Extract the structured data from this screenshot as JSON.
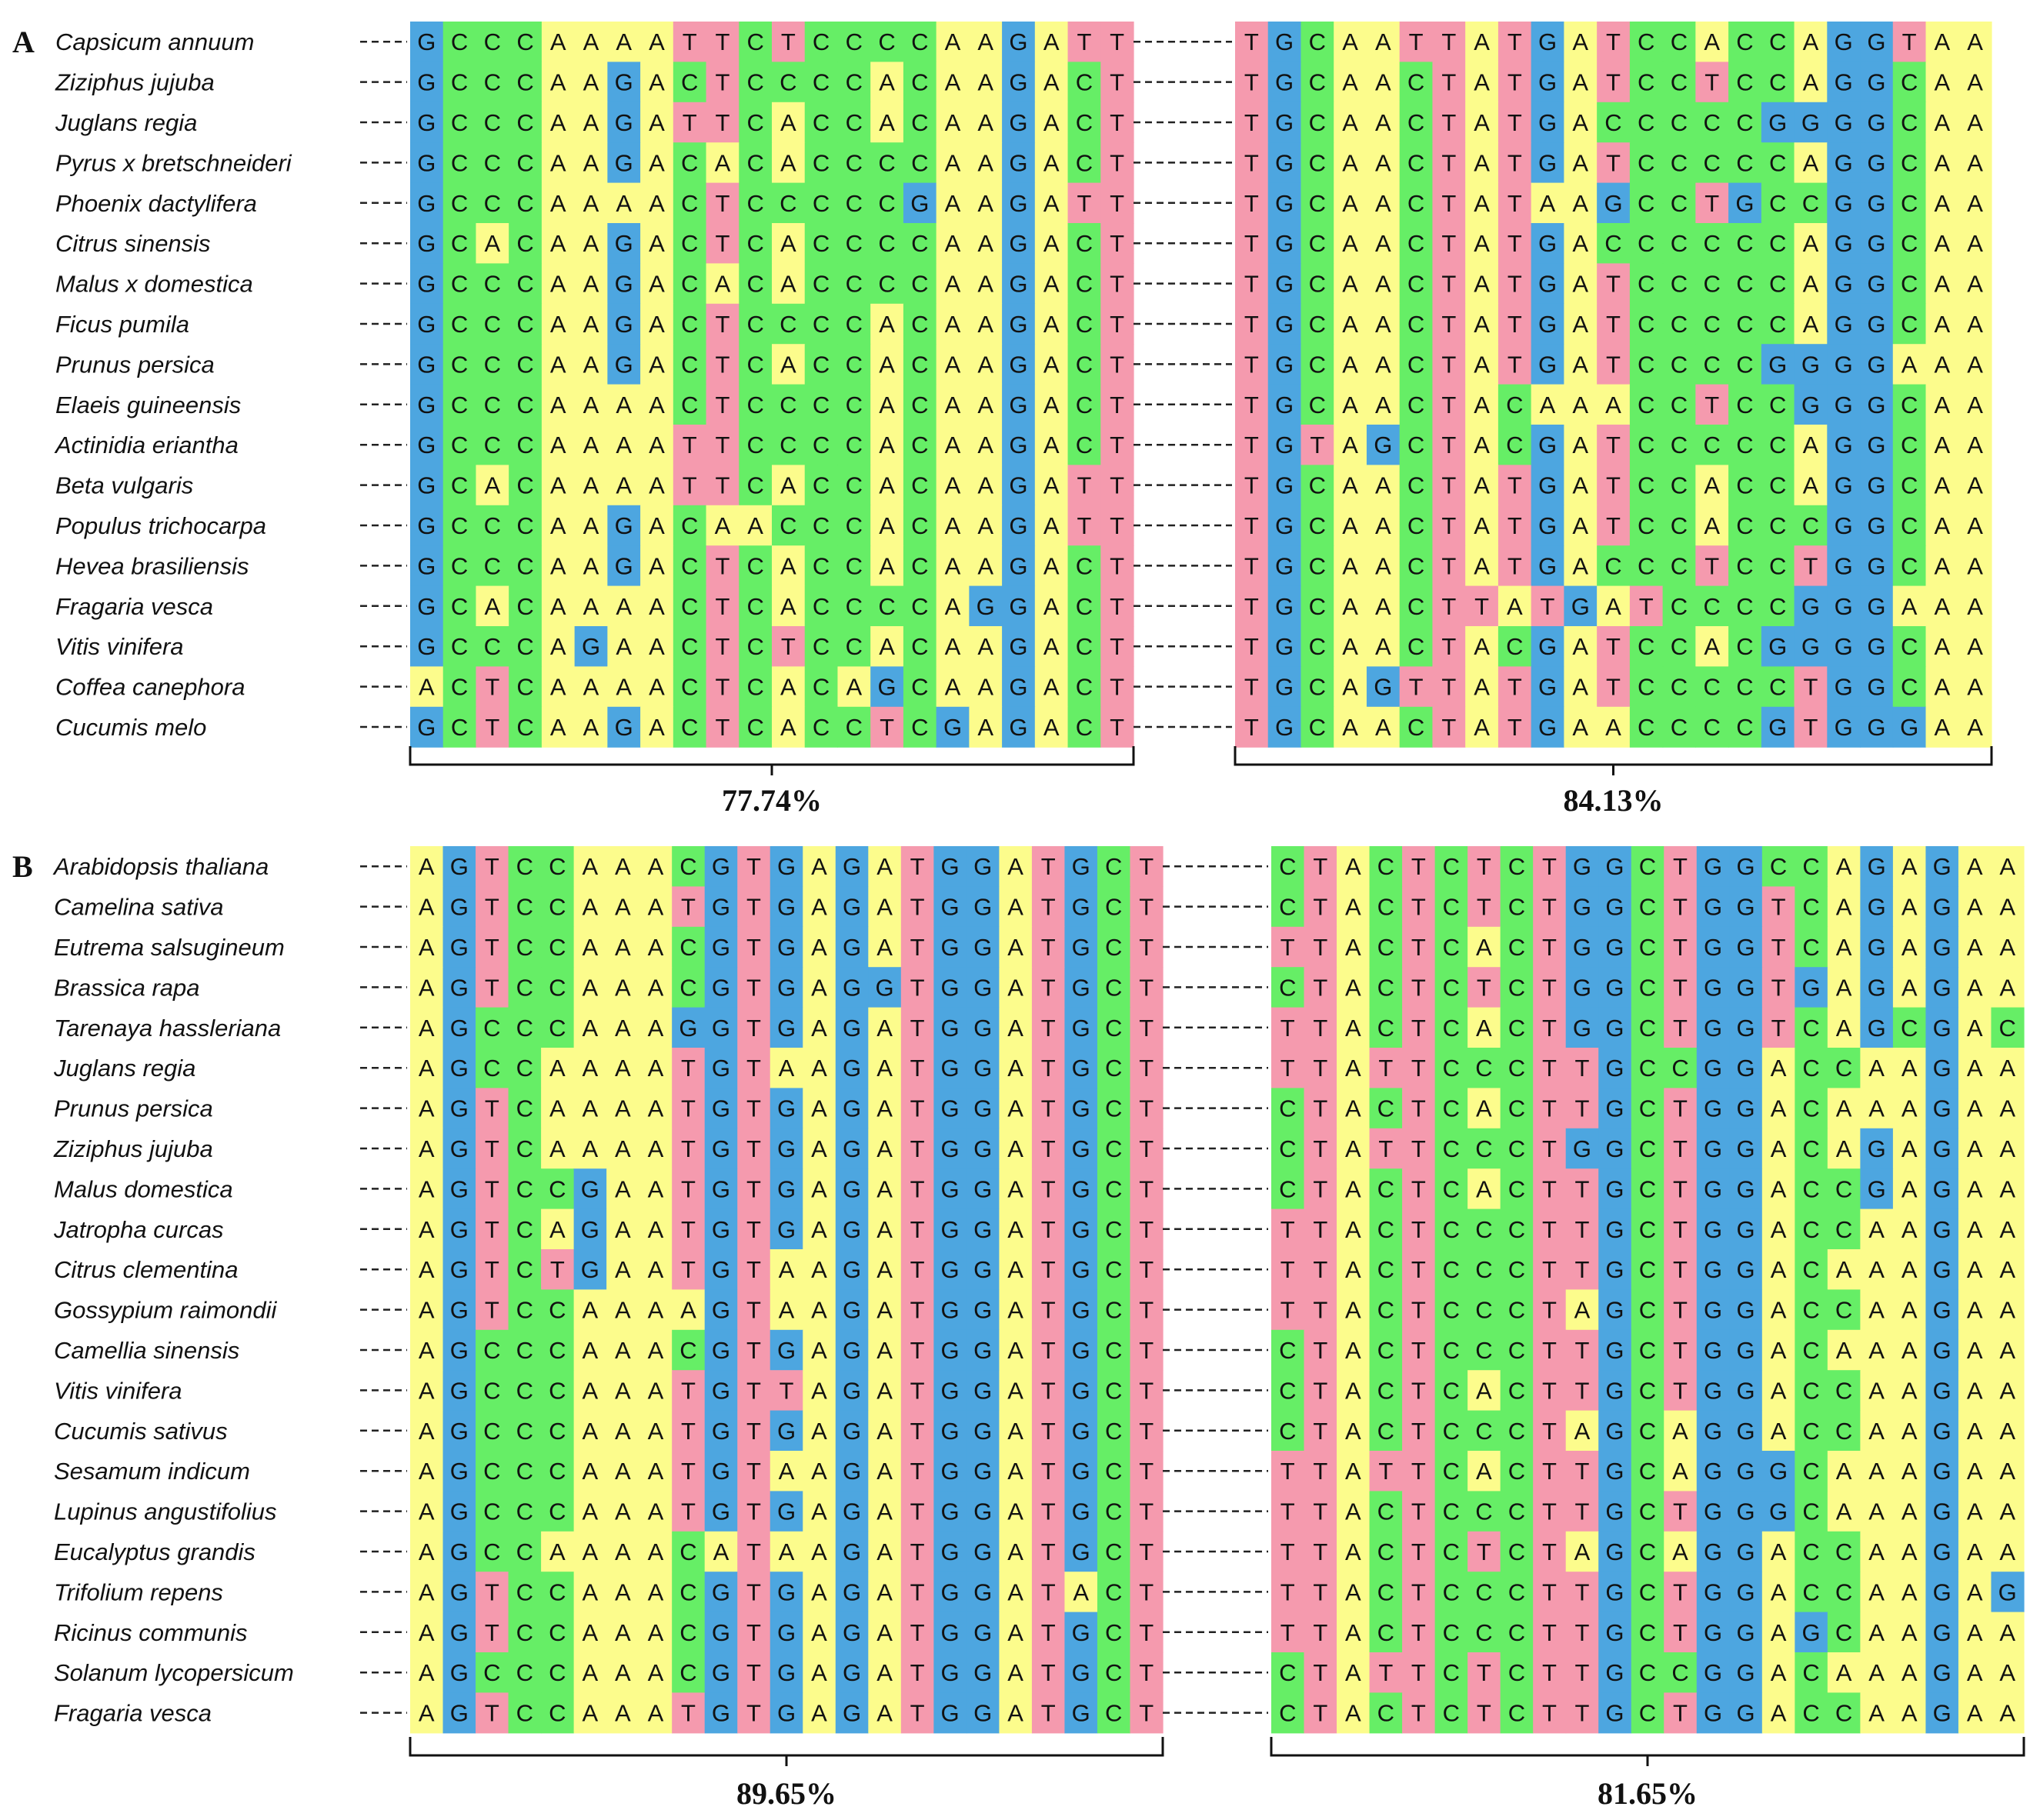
{
  "colors": {
    "A": "#FCFC8C",
    "C": "#66EE66",
    "G": "#4DA6E0",
    "T": "#F59AAE"
  },
  "panels": [
    {
      "label": "A",
      "blocks": [
        {
          "identity": "77.74%",
          "sequences": [
            "GCCCAAAATTCTCCCCAAGATT",
            "GCCCAAGACTCCCCACAAGACT",
            "GCCCAAGATTCACCACAAGACT",
            "GCCCAAGACACACCCCAAGACT",
            "GCCCAAAACTCCCCCGAAGATT",
            "GCACAAGACTCACCCCAAGACT",
            "GCCCAAGACACACCCCAAGACT",
            "GCCCAAGACTCCCCACAAGACT",
            "GCCCAAGACTCACCACAAGACT",
            "GCCCAAAACTCCCCACAAGACT",
            "GCCCAAAATTCCCCACAAGACT",
            "GCACAAAATTCACCACAAGATT",
            "GCCCAAGACAACCCACAAGATT",
            "GCCCAAGACTCACCACAAGACT",
            "GCACAAAACTCACCCCAGGACT",
            "GCCCAGAACTCTCCACAAGACT",
            "ACTCAAAACTCACAGCAAGACT",
            "GCTCAAGACTCACCTCGAGACT"
          ]
        },
        {
          "identity": "84.13%",
          "sequences": [
            "TGCAATTATGATCCACCAGGTAA",
            "TGCAACTATGATCCTCCAGGCAA",
            "TGCAACTATGACCCCCGGGGCAA",
            "TGCAACTATGATCCCCCAGGCAA",
            "TGCAACTATAAGCCTGCCGGCAA",
            "TGCAACTATGACCCCCCAGGCAA",
            "TGCAACTATGATCCCCCAGGCAA",
            "TGCAACTATGATCCCCCAGGCAA",
            "TGCAACTATGATCCCCGGGGAAA",
            "TGCAACTACAAACCTCCGGGCAA",
            "TGTAGCTACGATCCCCCAGGCAA",
            "TGCAACTATGATCCACCAGGCAA",
            "TGCAACTATGATCCACCCGGCAA",
            "TGCAACTATGACCCTCCTGGCAA",
            "TGCAACTTATGATCCCCGGGAAA",
            "TGCAACTACGATCCACGGGGCAA",
            "TGCAGTTATGATCCCCCTGGCAA",
            "TGCAACTATGAACCCCGTGGGAA"
          ]
        }
      ],
      "species": [
        "Capsicum annuum",
        "Ziziphus jujuba",
        "Juglans regia",
        "Pyrus x bretschneideri",
        "Phoenix dactylifera",
        "Citrus sinensis",
        "Malus x domestica",
        "Ficus pumila",
        "Prunus persica",
        "Elaeis guineensis",
        "Actinidia eriantha",
        "Beta vulgaris",
        "Populus trichocarpa",
        "Hevea brasiliensis",
        "Fragaria vesca",
        "Vitis vinifera",
        "Coffea canephora",
        "Cucumis melo"
      ]
    },
    {
      "label": "B",
      "blocks": [
        {
          "identity": "89.65%",
          "sequences": [
            "AGTCCAAACGTGAGATGGATGCT",
            "AGTCCAAATGTGAGATGGATGCT",
            "AGTCCAAACGTGAGATGGATGCT",
            "AGTCCAAACGTGAGGTGGATGCT",
            "AGCCCAAAGGTGAGATGGATGCT",
            "AGCCAAAATGTAAGATGGATGCT",
            "AGTCAAAATGTGAGATGGATGCT",
            "AGTCAAAATGTGAGATGGATGCT",
            "AGTCCGAATGTGAGATGGATGCT",
            "AGTCAGAATGTGAGATGGATGCT",
            "AGTCTGAATGTAAGATGGATGCT",
            "AGTCCAAAAGTAAGATGGATGCT",
            "AGCCCAAACGTGAGATGGATGCT",
            "AGCCCAAATGTTAGATGGATGCT",
            "AGCCCAAATGTGAGATGGATGCT",
            "AGCCCAAATGTAAGATGGATGCT",
            "AGCCCAAATGTGAGATGGATGCT",
            "AGCCAAAACATAAGATGGATGCT",
            "AGTCCAAACGTGAGATGGATACT",
            "AGTCCAAACGTGAGATGGATGCT",
            "AGCCCAAACGTGAGATGGATGCT",
            "AGTCCAAATGTGAGATGGATGCT"
          ]
        },
        {
          "identity": "81.65%",
          "sequences": [
            "CTACTCTCTGGCTGGCCAGAGAA",
            "CTACTCTCTGGCTGGTCAGAGAA",
            "TTACTCACTGGCTGGTCAGAGAA",
            "CTACTCTCTGGCTGGTGAGAGAA",
            "TTACTCACTGGCTGGTCAGCGAC",
            "TTATTCCCTTGCCGGACCAAGAA",
            "CTACTCACTTGCTGGACAAAGAA",
            "CTATTCCCTGGCTGGACAGAGAA",
            "CTACTCACTTGCTGGACCGAGAA",
            "TTACTCCCTTGCTGGACCAAGAA",
            "TTACTCCCTTGCTGGACAAAGAA",
            "TTACTCCCTAGCTGGACCAAGAA",
            "CTACTCCCTTGCTGGACAAAGAA",
            "CTACTCACTTGCTGGACCAAGAA",
            "CTACTCCCTAGCAGGACCAAGAA",
            "TTATTCACTTGCAGGGCAAAGAA",
            "TTACTCCCTTGCTGGGCAAAGAA",
            "TTACTCTCTAGCAGGACCAAGAA",
            "TTACTCCCTTGCTGGACCAAGAG",
            "TTACTCCCTTGCTGGAGCAAGAA",
            "CTATTCTCTTGCCGGACAAAGAA",
            "CTACTCTCTTGCTGGACCAAGAA"
          ]
        }
      ],
      "species": [
        "Arabidopsis thaliana",
        "Camelina sativa",
        "Eutrema salsugineum",
        "Brassica rapa",
        "Tarenaya hassleriana",
        "Juglans regia",
        "Prunus persica",
        "Ziziphus jujuba",
        "Malus domestica",
        "Jatropha curcas",
        "Citrus clementina",
        "Gossypium raimondii",
        "Camellia sinensis",
        "Vitis vinifera",
        "Cucumis sativus",
        "Sesamum indicum",
        "Lupinus angustifolius",
        "Eucalyptus grandis",
        "Trifolium repens",
        "Ricinus communis",
        "Solanum lycopersicum",
        "Fragaria vesca"
      ]
    }
  ]
}
